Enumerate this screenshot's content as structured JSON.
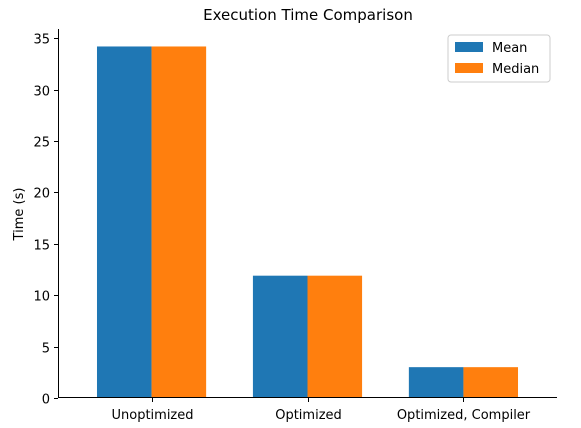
{
  "chart_data": {
    "type": "bar",
    "title": "Execution Time Comparison",
    "xlabel": "",
    "ylabel": "Time (s)",
    "categories": [
      "Unoptimized",
      "Optimized",
      "Optimized, Compiler"
    ],
    "series": [
      {
        "name": "Mean",
        "color": "#1f77b4",
        "values": [
          34.2,
          11.9,
          3.0
        ]
      },
      {
        "name": "Median",
        "color": "#ff7f0e",
        "values": [
          34.2,
          11.9,
          3.0
        ]
      }
    ],
    "ylim": [
      0,
      35.9
    ],
    "yticks": [
      "0",
      "5",
      "10",
      "15",
      "20",
      "25",
      "30",
      "35"
    ],
    "grid": false,
    "legend_position": "top-right"
  }
}
